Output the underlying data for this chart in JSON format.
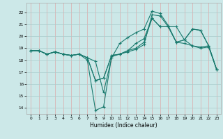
{
  "xlabel": "Humidex (Indice chaleur)",
  "bg_color": "#cce8e8",
  "line_color": "#1a7a6e",
  "xlim": [
    -0.5,
    23.5
  ],
  "ylim": [
    13.5,
    22.8
  ],
  "xticks": [
    0,
    1,
    2,
    3,
    4,
    5,
    6,
    7,
    8,
    9,
    10,
    11,
    12,
    13,
    14,
    15,
    16,
    17,
    18,
    19,
    20,
    21,
    22,
    23
  ],
  "yticks": [
    14,
    15,
    16,
    17,
    18,
    19,
    20,
    21,
    22
  ],
  "lines": [
    {
      "x": [
        0,
        1,
        2,
        3,
        4,
        5,
        6,
        7,
        8,
        9,
        10,
        11,
        12,
        13,
        14,
        15,
        16,
        17,
        18,
        19,
        20,
        21,
        22,
        23
      ],
      "y": [
        18.8,
        18.8,
        18.5,
        18.7,
        18.5,
        18.4,
        18.5,
        18.0,
        13.8,
        14.1,
        18.3,
        18.5,
        18.7,
        18.9,
        19.3,
        21.8,
        21.7,
        20.8,
        20.8,
        19.7,
        19.2,
        19.1,
        19.2,
        17.2
      ]
    },
    {
      "x": [
        0,
        1,
        2,
        3,
        4,
        5,
        6,
        7,
        8,
        9,
        10,
        11,
        12,
        13,
        14,
        15,
        16,
        17,
        18,
        19,
        20,
        21,
        22,
        23
      ],
      "y": [
        18.8,
        18.8,
        18.5,
        18.7,
        18.5,
        18.4,
        18.5,
        18.2,
        17.9,
        15.3,
        18.2,
        19.4,
        19.9,
        20.3,
        20.6,
        22.1,
        21.9,
        20.9,
        19.5,
        19.4,
        19.2,
        19.0,
        19.1,
        17.2
      ]
    },
    {
      "x": [
        0,
        1,
        2,
        3,
        4,
        5,
        6,
        7,
        8,
        9,
        10,
        11,
        12,
        13,
        14,
        15,
        16,
        17,
        18,
        19,
        20,
        21,
        22,
        23
      ],
      "y": [
        18.8,
        18.8,
        18.5,
        18.7,
        18.5,
        18.4,
        18.5,
        18.2,
        16.3,
        16.5,
        18.4,
        18.5,
        18.8,
        19.4,
        19.8,
        21.5,
        20.8,
        20.8,
        19.5,
        19.7,
        20.6,
        20.5,
        19.2,
        17.2
      ]
    },
    {
      "x": [
        0,
        1,
        2,
        3,
        4,
        5,
        6,
        7,
        8,
        9,
        10,
        11,
        12,
        13,
        14,
        15,
        16,
        17,
        18,
        19,
        20,
        21,
        22,
        23
      ],
      "y": [
        18.8,
        18.8,
        18.5,
        18.7,
        18.5,
        18.4,
        18.5,
        18.2,
        16.3,
        16.5,
        18.4,
        18.5,
        18.8,
        19.0,
        19.5,
        21.5,
        20.8,
        20.8,
        19.5,
        19.7,
        20.6,
        20.5,
        19.2,
        17.2
      ]
    }
  ]
}
